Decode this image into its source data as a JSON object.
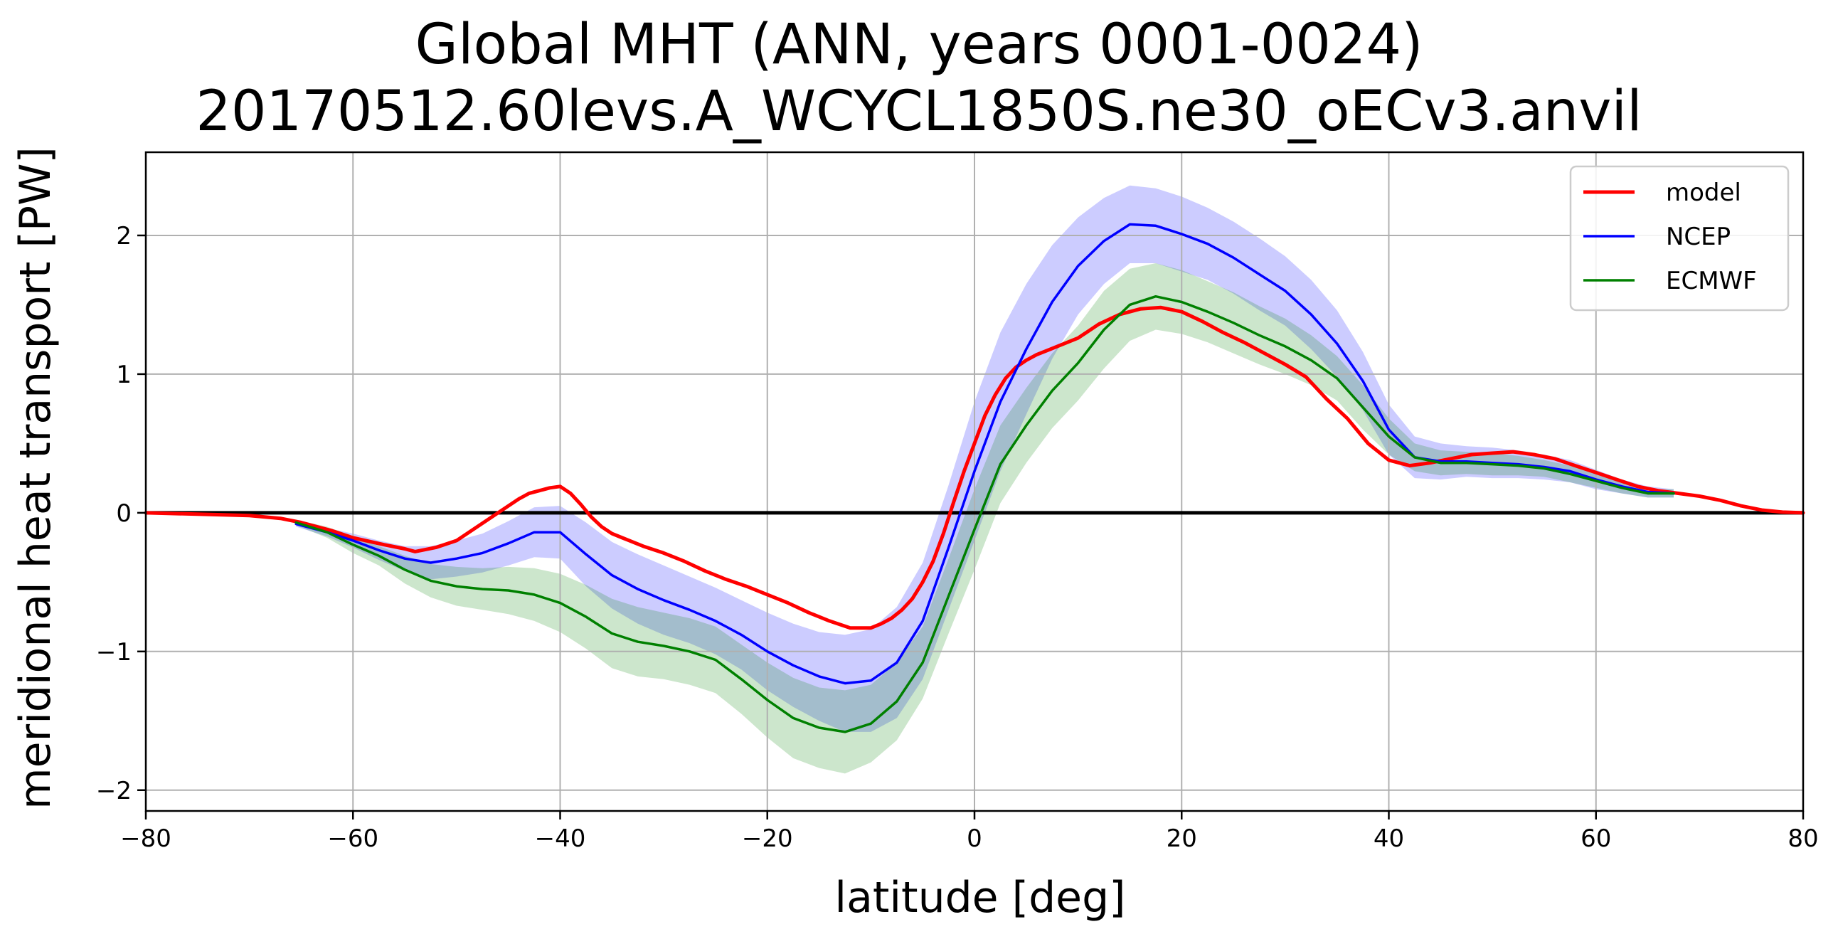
{
  "chart_data": {
    "type": "line",
    "title": "Global MHT (ANN, years 0001-0024)",
    "subtitle": "20170512.60levs.A_WCYCL1850S.ne30_oECv3.anvil",
    "xlabel": "latitude [deg]",
    "ylabel": "meridional heat transport [PW]",
    "xlim": [
      -80,
      80
    ],
    "ylim": [
      -2.15,
      2.6
    ],
    "xticks": [
      -80,
      -60,
      -40,
      -20,
      0,
      20,
      40,
      60,
      80
    ],
    "yticks": [
      -2,
      -1,
      0,
      1,
      2
    ],
    "xtick_labels": [
      "−80",
      "−60",
      "−40",
      "−20",
      "0",
      "20",
      "40",
      "60",
      "80"
    ],
    "ytick_labels": [
      "−2",
      "−1",
      "0",
      "1",
      "2"
    ],
    "grid": true,
    "zero_line": true,
    "legend_position": "top-right",
    "series": [
      {
        "name": "model",
        "color": "#ff0000",
        "x": [
          -80,
          -75,
          -70,
          -67,
          -65,
          -62,
          -60,
          -57,
          -55,
          -54,
          -52,
          -50,
          -48,
          -46,
          -44,
          -43,
          -42,
          -41,
          -40,
          -39,
          -38,
          -37,
          -36,
          -35,
          -34,
          -33,
          -32,
          -30,
          -28,
          -26,
          -24,
          -22,
          -20,
          -18,
          -16,
          -14,
          -12,
          -10,
          -9,
          -8,
          -7,
          -6,
          -5,
          -4,
          -3,
          -2,
          -1,
          0,
          1,
          2,
          3,
          4,
          5,
          6,
          7,
          8,
          10,
          12,
          14,
          16,
          18,
          20,
          22,
          24,
          26,
          28,
          30,
          32,
          34,
          36,
          38,
          40,
          42,
          44,
          46,
          48,
          50,
          52,
          54,
          56,
          58,
          60,
          62,
          64,
          66,
          68,
          70,
          72,
          74,
          76,
          78,
          80
        ],
        "values": [
          0.0,
          -0.01,
          -0.02,
          -0.04,
          -0.07,
          -0.13,
          -0.18,
          -0.23,
          -0.26,
          -0.28,
          -0.25,
          -0.2,
          -0.1,
          0.0,
          0.1,
          0.14,
          0.16,
          0.18,
          0.19,
          0.14,
          0.06,
          -0.03,
          -0.1,
          -0.15,
          -0.18,
          -0.21,
          -0.24,
          -0.29,
          -0.35,
          -0.42,
          -0.48,
          -0.53,
          -0.59,
          -0.65,
          -0.72,
          -0.78,
          -0.83,
          -0.83,
          -0.8,
          -0.76,
          -0.7,
          -0.62,
          -0.5,
          -0.35,
          -0.15,
          0.08,
          0.3,
          0.5,
          0.7,
          0.85,
          0.97,
          1.05,
          1.1,
          1.14,
          1.17,
          1.2,
          1.26,
          1.36,
          1.43,
          1.47,
          1.48,
          1.45,
          1.38,
          1.3,
          1.23,
          1.15,
          1.07,
          0.98,
          0.82,
          0.68,
          0.5,
          0.38,
          0.34,
          0.36,
          0.39,
          0.42,
          0.43,
          0.44,
          0.42,
          0.39,
          0.34,
          0.29,
          0.24,
          0.19,
          0.16,
          0.14,
          0.12,
          0.09,
          0.05,
          0.02,
          0.005,
          0.0
        ]
      },
      {
        "name": "NCEP",
        "color": "#0000ff",
        "x": [
          -65.5,
          -62.5,
          -60,
          -57.5,
          -55,
          -52.5,
          -50,
          -47.5,
          -45,
          -42.5,
          -40,
          -37.5,
          -35,
          -32.5,
          -30,
          -27.5,
          -25,
          -22.5,
          -20,
          -17.5,
          -15,
          -12.5,
          -10,
          -7.5,
          -5,
          -2.5,
          0,
          2.5,
          5,
          7.5,
          10,
          12.5,
          15,
          17.5,
          20,
          22.5,
          25,
          27.5,
          30,
          32.5,
          35,
          37.5,
          40,
          42.5,
          45,
          47.5,
          50,
          52.5,
          55,
          57.5,
          60,
          62.5,
          65,
          67.5
        ],
        "values": [
          -0.08,
          -0.14,
          -0.2,
          -0.27,
          -0.33,
          -0.36,
          -0.33,
          -0.29,
          -0.22,
          -0.14,
          -0.14,
          -0.3,
          -0.45,
          -0.55,
          -0.63,
          -0.7,
          -0.78,
          -0.88,
          -1.0,
          -1.1,
          -1.18,
          -1.23,
          -1.21,
          -1.08,
          -0.78,
          -0.25,
          0.3,
          0.8,
          1.18,
          1.52,
          1.78,
          1.96,
          2.08,
          2.07,
          2.01,
          1.94,
          1.84,
          1.72,
          1.6,
          1.43,
          1.22,
          0.95,
          0.6,
          0.4,
          0.37,
          0.37,
          0.36,
          0.35,
          0.33,
          0.3,
          0.24,
          0.19,
          0.15,
          0.14
        ]
      },
      {
        "name": "ECMWF",
        "color": "#008000",
        "x": [
          -65.5,
          -62.5,
          -60,
          -57.5,
          -55,
          -52.5,
          -50,
          -47.5,
          -45,
          -42.5,
          -40,
          -37.5,
          -35,
          -32.5,
          -30,
          -27.5,
          -25,
          -22.5,
          -20,
          -17.5,
          -15,
          -12.5,
          -10,
          -7.5,
          -5,
          -2.5,
          0,
          2.5,
          5,
          7.5,
          10,
          12.5,
          15,
          17.5,
          20,
          22.5,
          25,
          27.5,
          30,
          32.5,
          35,
          37.5,
          40,
          42.5,
          45,
          47.5,
          50,
          52.5,
          55,
          57.5,
          60,
          62.5,
          65,
          67.5
        ],
        "values": [
          -0.07,
          -0.14,
          -0.23,
          -0.31,
          -0.41,
          -0.49,
          -0.53,
          -0.55,
          -0.56,
          -0.59,
          -0.65,
          -0.75,
          -0.87,
          -0.93,
          -0.96,
          -1.0,
          -1.06,
          -1.2,
          -1.35,
          -1.48,
          -1.55,
          -1.58,
          -1.52,
          -1.36,
          -1.08,
          -0.6,
          -0.12,
          0.35,
          0.63,
          0.88,
          1.08,
          1.32,
          1.5,
          1.56,
          1.52,
          1.45,
          1.37,
          1.28,
          1.2,
          1.1,
          0.97,
          0.76,
          0.55,
          0.4,
          0.36,
          0.36,
          0.35,
          0.34,
          0.32,
          0.28,
          0.23,
          0.18,
          0.14,
          0.14
        ]
      }
    ],
    "bands": [
      {
        "name": "NCEP",
        "color": "#0000ff",
        "x": [
          -65.5,
          -62.5,
          -60,
          -57.5,
          -55,
          -52.5,
          -50,
          -47.5,
          -45,
          -42.5,
          -40,
          -37.5,
          -35,
          -32.5,
          -30,
          -27.5,
          -25,
          -22.5,
          -20,
          -17.5,
          -15,
          -12.5,
          -10,
          -7.5,
          -5,
          -2.5,
          0,
          2.5,
          5,
          7.5,
          10,
          12.5,
          15,
          17.5,
          20,
          22.5,
          25,
          27.5,
          30,
          32.5,
          35,
          37.5,
          40,
          42.5,
          45,
          47.5,
          50,
          52.5,
          55,
          57.5,
          60,
          62.5,
          65,
          67.5
        ],
        "upper": [
          -0.06,
          -0.11,
          -0.15,
          -0.2,
          -0.24,
          -0.24,
          -0.2,
          -0.15,
          -0.06,
          0.04,
          0.05,
          -0.07,
          -0.21,
          -0.3,
          -0.38,
          -0.46,
          -0.54,
          -0.63,
          -0.72,
          -0.8,
          -0.86,
          -0.88,
          -0.84,
          -0.68,
          -0.36,
          0.2,
          0.8,
          1.3,
          1.65,
          1.93,
          2.13,
          2.27,
          2.36,
          2.34,
          2.28,
          2.2,
          2.1,
          1.98,
          1.85,
          1.68,
          1.46,
          1.16,
          0.78,
          0.55,
          0.5,
          0.48,
          0.47,
          0.45,
          0.42,
          0.38,
          0.31,
          0.24,
          0.19,
          0.17
        ],
        "lower": [
          -0.1,
          -0.17,
          -0.25,
          -0.34,
          -0.42,
          -0.48,
          -0.46,
          -0.43,
          -0.38,
          -0.32,
          -0.33,
          -0.53,
          -0.69,
          -0.8,
          -0.88,
          -0.94,
          -1.02,
          -1.13,
          -1.28,
          -1.4,
          -1.5,
          -1.58,
          -1.58,
          -1.48,
          -1.2,
          -0.7,
          -0.2,
          0.3,
          0.71,
          1.11,
          1.43,
          1.65,
          1.8,
          1.8,
          1.74,
          1.68,
          1.58,
          1.46,
          1.35,
          1.18,
          0.98,
          0.74,
          0.42,
          0.25,
          0.24,
          0.26,
          0.25,
          0.25,
          0.24,
          0.22,
          0.17,
          0.14,
          0.11,
          0.11
        ]
      },
      {
        "name": "ECMWF",
        "color": "#008000",
        "x": [
          -65.5,
          -62.5,
          -60,
          -57.5,
          -55,
          -52.5,
          -50,
          -47.5,
          -45,
          -42.5,
          -40,
          -37.5,
          -35,
          -32.5,
          -30,
          -27.5,
          -25,
          -22.5,
          -20,
          -17.5,
          -15,
          -12.5,
          -10,
          -7.5,
          -5,
          -2.5,
          0,
          2.5,
          5,
          7.5,
          10,
          12.5,
          15,
          17.5,
          20,
          22.5,
          25,
          27.5,
          30,
          32.5,
          35,
          37.5,
          40,
          42.5,
          45,
          47.5,
          50,
          52.5,
          55,
          57.5,
          60,
          62.5,
          65,
          67.5
        ],
        "upper": [
          -0.05,
          -0.1,
          -0.17,
          -0.24,
          -0.31,
          -0.37,
          -0.39,
          -0.4,
          -0.39,
          -0.4,
          -0.44,
          -0.52,
          -0.62,
          -0.68,
          -0.72,
          -0.76,
          -0.82,
          -0.95,
          -1.08,
          -1.19,
          -1.26,
          -1.28,
          -1.24,
          -1.08,
          -0.82,
          -0.33,
          0.17,
          0.63,
          0.9,
          1.15,
          1.35,
          1.6,
          1.76,
          1.8,
          1.75,
          1.67,
          1.59,
          1.49,
          1.4,
          1.28,
          1.13,
          0.92,
          0.68,
          0.5,
          0.45,
          0.44,
          0.43,
          0.41,
          0.38,
          0.34,
          0.28,
          0.22,
          0.17,
          0.17
        ],
        "lower": [
          -0.09,
          -0.18,
          -0.29,
          -0.38,
          -0.51,
          -0.61,
          -0.67,
          -0.7,
          -0.73,
          -0.78,
          -0.86,
          -0.98,
          -1.12,
          -1.18,
          -1.2,
          -1.24,
          -1.3,
          -1.45,
          -1.62,
          -1.77,
          -1.84,
          -1.88,
          -1.8,
          -1.64,
          -1.34,
          -0.87,
          -0.41,
          0.07,
          0.36,
          0.61,
          0.81,
          1.04,
          1.24,
          1.32,
          1.29,
          1.23,
          1.15,
          1.07,
          1.0,
          0.92,
          0.81,
          0.6,
          0.42,
          0.3,
          0.27,
          0.28,
          0.27,
          0.27,
          0.26,
          0.22,
          0.18,
          0.14,
          0.11,
          0.11
        ]
      }
    ]
  }
}
